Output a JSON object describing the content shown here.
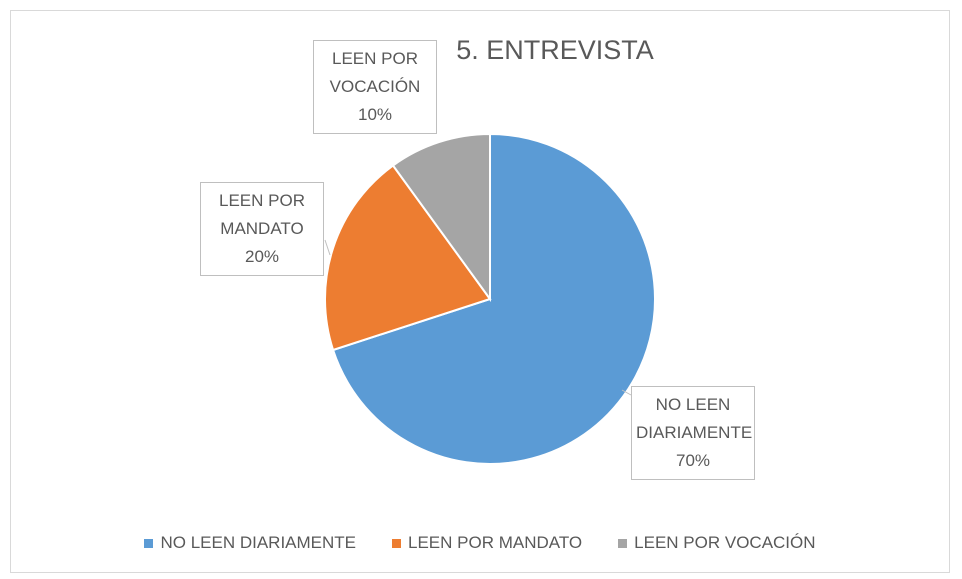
{
  "chart_data": {
    "type": "pie",
    "title": "5. ENTREVISTA",
    "categories": [
      "NO LEEN DIARIAMENTE",
      "LEEN POR MANDATO",
      "LEEN POR VOCACIÓN"
    ],
    "values": [
      70,
      20,
      10
    ],
    "value_labels": [
      "70%",
      "20%",
      "10%"
    ],
    "colors": [
      "#5b9bd5",
      "#ed7d31",
      "#a5a5a5"
    ],
    "legend": "bottom"
  }
}
